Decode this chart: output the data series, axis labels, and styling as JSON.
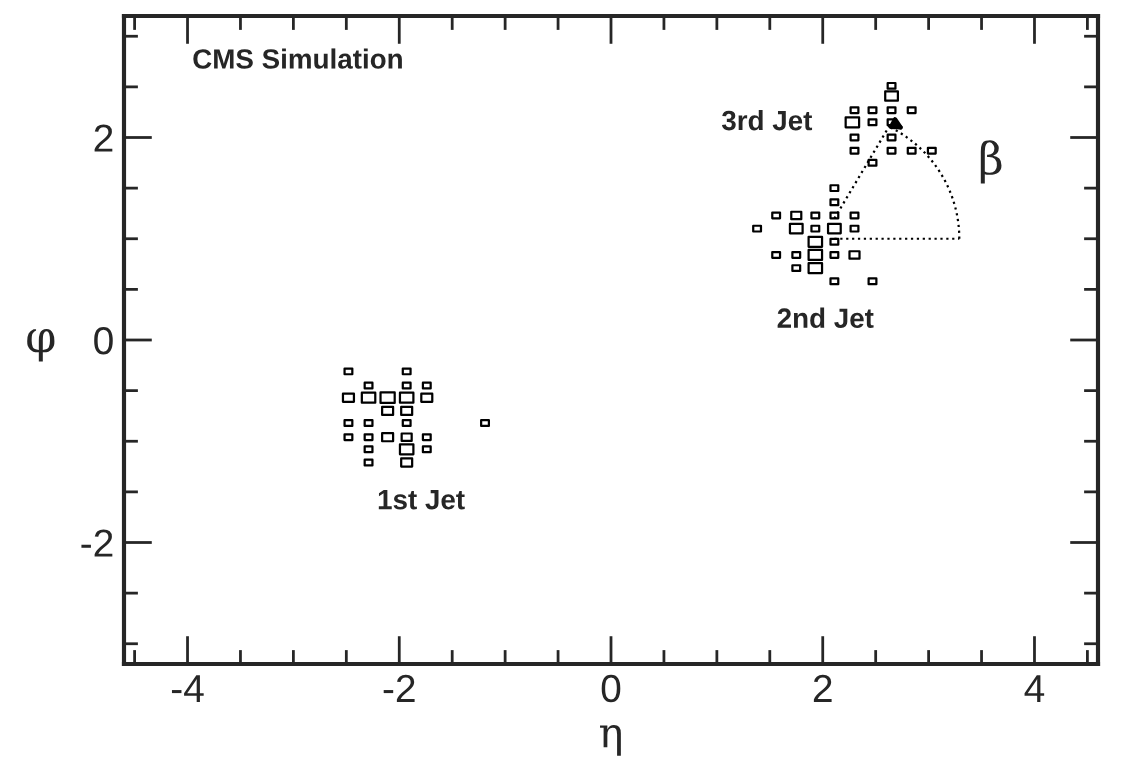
{
  "chart_data": {
    "type": "bubble",
    "xlabel": "η",
    "ylabel": "φ",
    "x": [
      -2.48,
      -1.93,
      -2.29,
      -1.93,
      -1.74,
      -2.48,
      -2.29,
      -2.11,
      -1.93,
      -1.74,
      -2.11,
      -1.93,
      -2.48,
      -2.29,
      -1.93,
      -1.19,
      -2.48,
      -2.29,
      -2.11,
      -1.93,
      -1.74,
      -2.29,
      -1.93,
      -1.74,
      -2.29,
      -1.93,
      2.65,
      2.65,
      2.3,
      2.47,
      2.65,
      2.84,
      2.28,
      2.47,
      2.65,
      2.3,
      2.65,
      2.3,
      2.65,
      2.84,
      3.03,
      2.47,
      2.11,
      2.11,
      1.56,
      1.75,
      1.93,
      2.11,
      2.3,
      1.38,
      1.75,
      1.93,
      2.11,
      2.3,
      1.93,
      2.11,
      1.56,
      1.75,
      1.93,
      2.11,
      2.3,
      1.75,
      1.93,
      2.11,
      2.47
    ],
    "values": [
      -0.31,
      -0.31,
      -0.45,
      -0.45,
      -0.45,
      -0.57,
      -0.57,
      -0.57,
      -0.57,
      -0.57,
      -0.7,
      -0.7,
      -0.82,
      -0.82,
      -0.82,
      -0.82,
      -0.96,
      -0.96,
      -0.96,
      -0.96,
      -0.96,
      -1.08,
      -1.08,
      -1.08,
      -1.21,
      -1.21,
      2.51,
      2.41,
      2.27,
      2.27,
      2.27,
      2.27,
      2.15,
      2.15,
      2.15,
      2.0,
      2.0,
      1.87,
      1.87,
      1.87,
      1.87,
      1.75,
      1.5,
      1.36,
      1.23,
      1.23,
      1.23,
      1.23,
      1.23,
      1.1,
      1.1,
      1.1,
      1.1,
      1.1,
      0.97,
      0.97,
      0.84,
      0.84,
      0.84,
      0.84,
      0.84,
      0.71,
      0.71,
      0.58,
      0.58
    ],
    "sizes": [
      0.3,
      0.3,
      0.3,
      0.3,
      0.3,
      0.6,
      0.9,
      1,
      0.9,
      0.6,
      0.6,
      0.6,
      0.3,
      0.3,
      0.3,
      0.3,
      0.3,
      0.3,
      0.6,
      0.5,
      0.3,
      0.3,
      0.9,
      0.3,
      0.3,
      0.6,
      0.3,
      0.8,
      0.3,
      0.3,
      0.3,
      0.3,
      0.9,
      0.3,
      0.3,
      0.3,
      0.3,
      0.3,
      0.3,
      0.3,
      0.3,
      0.3,
      0.3,
      0.3,
      0.3,
      0.5,
      0.3,
      0.3,
      0.3,
      0.3,
      0.8,
      0.3,
      0.8,
      0.3,
      0.9,
      0.3,
      0.3,
      0.3,
      0.9,
      0.3,
      0.5,
      0.3,
      0.9,
      0.3,
      0.3
    ],
    "marker": "square",
    "color": "#000000",
    "xlim": [
      -4.6,
      4.6
    ],
    "ylim": [
      -3.2,
      3.2
    ],
    "xticks": [
      -4,
      -2,
      0,
      2,
      4
    ],
    "yticks": [
      -2,
      0,
      2
    ],
    "grid": false,
    "annotations": [
      "CMS Simulation",
      "1st Jet",
      "2nd Jet",
      "3rd Jet",
      "β"
    ]
  }
}
